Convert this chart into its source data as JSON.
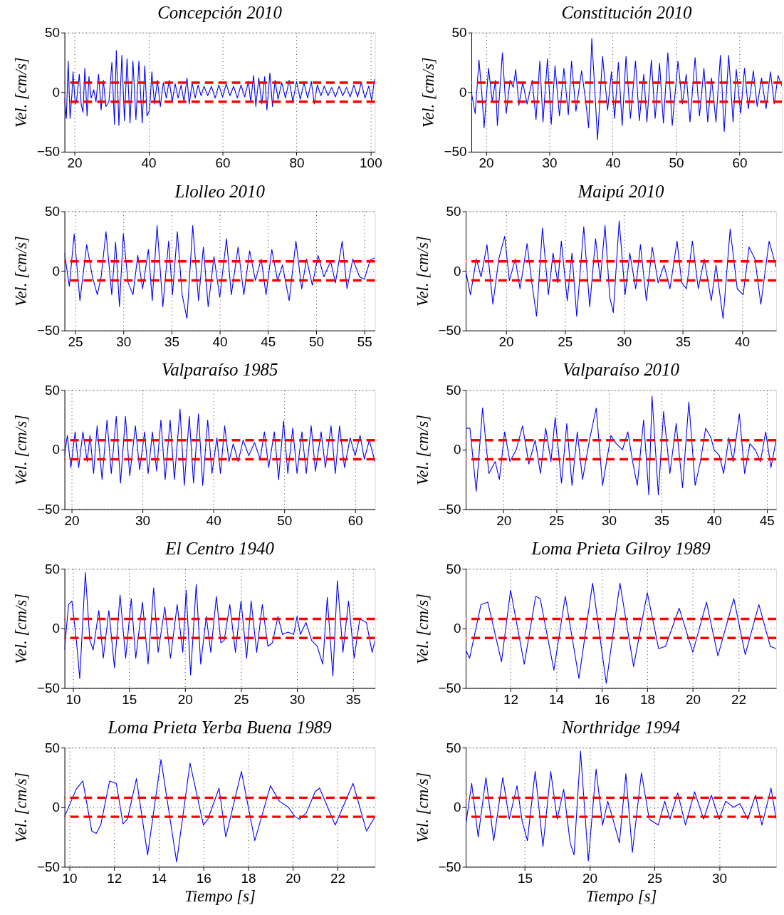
{
  "chart_data": [
    {
      "type": "line",
      "title": "Concepción 2010",
      "ylabel": "Vel. [cm/s]",
      "xlim": [
        17.3,
        101.2
      ],
      "xticks": [
        20,
        40,
        60,
        80,
        100
      ],
      "ylim": [
        -50,
        50
      ],
      "yticks": [
        -50,
        0,
        50
      ],
      "grid": true,
      "ref_lines": [
        {
          "axis": "y",
          "value": 8,
          "color": "#ff0000",
          "line_style": "dashed"
        },
        {
          "axis": "y",
          "value": -8,
          "color": "#ff0000",
          "line_style": "dashed"
        }
      ],
      "series": [
        {
          "color": "#0000ff",
          "x": [
            17.3,
            17.8,
            18.3,
            18.8,
            19.3,
            19.6,
            20.2,
            20.6,
            21.3,
            21.8,
            22.3,
            22.8,
            23.4,
            23.9,
            24.5,
            25.2,
            25.8,
            26.5,
            27.2,
            27.8,
            28.5,
            29.3,
            30.1,
            30.8,
            31.3,
            32.0,
            32.8,
            33.5,
            34.2,
            35.0,
            35.8,
            36.6,
            37.4,
            38.3,
            39.0,
            39.6,
            40.3,
            40.9,
            41.6,
            42.4,
            43.2,
            44.0,
            44.8,
            45.6,
            46.4,
            47.2,
            48.0,
            48.8,
            49.6,
            50.4,
            51.0,
            51.8,
            52.6,
            53.4,
            54.2,
            55.0,
            56.0,
            57.0,
            58.0,
            59.0,
            60.0,
            61.0,
            62.0,
            63.0,
            64.0,
            65.0,
            66.0,
            67.0,
            67.6,
            68.4,
            69.0,
            69.8,
            70.6,
            71.4,
            72.0,
            72.8,
            73.5,
            74.2,
            75.0,
            76.0,
            77.0,
            78.0,
            79.0,
            80.0,
            81.0,
            82.0,
            83.0,
            84.0,
            84.8,
            85.6,
            86.6,
            87.5,
            88.5,
            89.5,
            90.5,
            91.5,
            92.5,
            93.5,
            94.5,
            95.5,
            96.5,
            97.5,
            98.5,
            99.5,
            100.3,
            101.1
          ],
          "values": [
            -5,
            -22,
            26,
            -22,
            -2,
            17,
            -10,
            -6,
            15,
            -10,
            -17,
            20,
            -20,
            13,
            -5,
            2,
            -8,
            15,
            -15,
            10,
            -12,
            -8,
            25,
            -27,
            35,
            -28,
            31,
            -24,
            28,
            -26,
            26,
            -23,
            26,
            -26,
            22,
            -20,
            -15,
            17,
            -10,
            10,
            -12,
            8,
            -5,
            10,
            -8,
            7,
            -5,
            6,
            -8,
            12,
            -10,
            8,
            -5,
            6,
            -3,
            5,
            -3,
            5,
            -5,
            6,
            -4,
            7,
            -3,
            5,
            -5,
            6,
            -4,
            9,
            -8,
            14,
            -12,
            12,
            -10,
            13,
            -15,
            16,
            -12,
            10,
            -6,
            8,
            -5,
            10,
            -8,
            9,
            -6,
            8,
            -5,
            9,
            -10,
            6,
            -3,
            5,
            -3,
            4,
            -4,
            5,
            -3,
            4,
            -4,
            6,
            -4,
            8,
            -5,
            5,
            -7,
            11
          ]
        }
      ]
    },
    {
      "type": "line",
      "title": "Constitución 2010",
      "ylabel": "Vel. [cm/s]",
      "xlim": [
        17.7,
        66.7
      ],
      "xticks": [
        20,
        30,
        40,
        50,
        60
      ],
      "ylim": [
        -50,
        50
      ],
      "yticks": [
        -50,
        0,
        50
      ],
      "grid": true,
      "ref_lines": [
        {
          "axis": "y",
          "value": 8,
          "color": "#ff0000",
          "line_style": "dashed"
        },
        {
          "axis": "y",
          "value": -8,
          "color": "#ff0000",
          "line_style": "dashed"
        }
      ],
      "series": [
        {
          "color": "#0000ff",
          "x": [
            17.7,
            18.3,
            18.9,
            19.4,
            19.7,
            20.4,
            21.0,
            21.5,
            21.8,
            22.6,
            23.2,
            23.8,
            24.3,
            24.7,
            25.2,
            25.8,
            26.5,
            27.3,
            27.9,
            28.5,
            29.0,
            29.7,
            30.3,
            30.9,
            31.6,
            32.3,
            33.0,
            33.5,
            34.2,
            35.1,
            35.7,
            36.2,
            36.7,
            37.3,
            37.6,
            38.4,
            39.2,
            39.8,
            40.3,
            40.9,
            41.5,
            42.1,
            42.8,
            43.6,
            44.2,
            44.9,
            45.4,
            46.1,
            46.7,
            47.4,
            48.0,
            48.7,
            49.4,
            50.3,
            51.0,
            51.6,
            52.2,
            53.0,
            53.7,
            54.4,
            55.0,
            55.6,
            56.3,
            57.0,
            57.6,
            58.3,
            59.0,
            59.5,
            60.2,
            60.8,
            61.4,
            62.2,
            62.8,
            63.5,
            64.2,
            64.9,
            65.5,
            66.1,
            66.7
          ],
          "values": [
            0,
            -18,
            27,
            -5,
            -30,
            20,
            -8,
            10,
            -28,
            33,
            -18,
            10,
            4,
            19,
            -11,
            8,
            -10,
            10,
            -23,
            26,
            -25,
            28,
            -27,
            22,
            -20,
            20,
            -19,
            26,
            -16,
            18,
            -6,
            -30,
            45,
            -10,
            -40,
            30,
            -15,
            17,
            -22,
            25,
            -28,
            30,
            -22,
            26,
            -24,
            15,
            -25,
            27,
            -22,
            24,
            -26,
            33,
            -28,
            26,
            -10,
            15,
            -25,
            29,
            -20,
            20,
            -25,
            12,
            -25,
            31,
            -33,
            31,
            -25,
            19,
            -18,
            20,
            -14,
            18,
            -12,
            12,
            -14,
            17,
            -10,
            14,
            5
          ]
        }
      ]
    },
    {
      "type": "line",
      "title": "Llolleo 2010",
      "ylabel": "Vel. [cm/s]",
      "xlim": [
        23.9,
        56.1
      ],
      "xticks": [
        25,
        30,
        35,
        40,
        45,
        50,
        55
      ],
      "ylim": [
        -50,
        50
      ],
      "yticks": [
        -50,
        0,
        50
      ],
      "grid": true,
      "ref_lines": [
        {
          "axis": "y",
          "value": 8,
          "color": "#ff0000",
          "line_style": "dashed"
        },
        {
          "axis": "y",
          "value": -8,
          "color": "#ff0000",
          "line_style": "dashed"
        }
      ],
      "series": [
        {
          "color": "#0000ff",
          "x": [
            23.9,
            24.4,
            24.9,
            25.5,
            26.2,
            26.8,
            27.3,
            27.7,
            28.2,
            28.8,
            29.2,
            29.6,
            30.0,
            30.5,
            31.0,
            31.5,
            32.0,
            32.6,
            33.0,
            33.5,
            34.1,
            34.7,
            35.1,
            35.6,
            36.1,
            36.6,
            37.2,
            37.8,
            38.3,
            38.8,
            39.4,
            40.0,
            40.7,
            41.2,
            41.9,
            42.5,
            43.1,
            43.7,
            44.3,
            44.8,
            45.4,
            46.0,
            46.5,
            47.2,
            47.9,
            48.5,
            49.0,
            49.6,
            50.2,
            50.8,
            51.5,
            52.0,
            52.7,
            53.2,
            53.8,
            54.5,
            55.0,
            55.6,
            56.1
          ],
          "values": [
            15,
            -13,
            31,
            -25,
            22,
            -5,
            -20,
            -5,
            33,
            -20,
            24,
            -30,
            31,
            -10,
            -20,
            13,
            -15,
            18,
            -25,
            38,
            -30,
            25,
            -20,
            33,
            -20,
            -40,
            38,
            -25,
            20,
            -30,
            12,
            -22,
            27,
            -20,
            20,
            -20,
            17,
            -8,
            10,
            -20,
            18,
            -8,
            5,
            -25,
            25,
            -15,
            10,
            -12,
            13,
            -5,
            8,
            -10,
            25,
            -15,
            10,
            -5,
            -7,
            9,
            11
          ]
        }
      ]
    },
    {
      "type": "line",
      "title": "Maipú 2010",
      "ylabel": "Vel. [cm/s]",
      "xlim": [
        16.6,
        42.9
      ],
      "xticks": [
        20,
        25,
        30,
        35,
        40
      ],
      "ylim": [
        -50,
        50
      ],
      "yticks": [
        -50,
        0,
        50
      ],
      "grid": true,
      "ref_lines": [
        {
          "axis": "y",
          "value": 8,
          "color": "#ff0000",
          "line_style": "dashed"
        },
        {
          "axis": "y",
          "value": -8,
          "color": "#ff0000",
          "line_style": "dashed"
        }
      ],
      "series": [
        {
          "color": "#0000ff",
          "x": [
            16.6,
            17.0,
            17.5,
            17.9,
            18.4,
            18.9,
            19.4,
            19.9,
            20.3,
            20.8,
            21.2,
            21.8,
            22.2,
            22.6,
            23.1,
            23.6,
            24.0,
            24.4,
            24.7,
            25.2,
            25.6,
            26.0,
            26.6,
            27.1,
            27.6,
            28.0,
            28.4,
            28.8,
            29.1,
            29.6,
            30.1,
            30.5,
            31.0,
            31.4,
            31.9,
            32.4,
            32.9,
            33.4,
            33.9,
            34.5,
            34.9,
            35.3,
            35.8,
            36.3,
            36.8,
            37.4,
            37.8,
            38.4,
            39.0,
            39.6,
            40.1,
            40.6,
            41.1,
            41.6,
            42.3,
            42.9
          ],
          "values": [
            0,
            -20,
            10,
            -5,
            22,
            -28,
            10,
            29,
            -8,
            10,
            -15,
            23,
            -10,
            -38,
            36,
            -20,
            15,
            -10,
            25,
            -25,
            15,
            -38,
            37,
            -30,
            27,
            -8,
            38,
            -22,
            -35,
            42,
            -20,
            15,
            -15,
            22,
            -25,
            20,
            -10,
            5,
            -15,
            25,
            -10,
            -15,
            25,
            -15,
            10,
            -25,
            5,
            -40,
            35,
            -15,
            -20,
            20,
            10,
            -28,
            25,
            3
          ]
        }
      ]
    },
    {
      "type": "line",
      "title": "Valparaíso 1985",
      "ylabel": "Vel. [cm/s]",
      "xlim": [
        19.0,
        62.8
      ],
      "xticks": [
        20,
        30,
        40,
        50,
        60
      ],
      "ylim": [
        -50,
        50
      ],
      "yticks": [
        -50,
        0,
        50
      ],
      "grid": true,
      "ref_lines": [
        {
          "axis": "y",
          "value": 8,
          "color": "#ff0000",
          "line_style": "dashed"
        },
        {
          "axis": "y",
          "value": -8,
          "color": "#ff0000",
          "line_style": "dashed"
        }
      ],
      "series": [
        {
          "color": "#0000ff",
          "x": [
            19.0,
            19.4,
            19.9,
            20.5,
            21.0,
            21.6,
            22.2,
            22.6,
            23.1,
            23.6,
            24.3,
            25.0,
            25.6,
            26.3,
            26.9,
            27.6,
            28.2,
            29.0,
            29.6,
            30.3,
            30.8,
            31.4,
            32.0,
            32.6,
            33.2,
            33.9,
            34.5,
            35.3,
            35.9,
            36.6,
            37.2,
            37.9,
            38.5,
            39.2,
            39.8,
            40.5,
            41.0,
            41.6,
            42.2,
            42.8,
            43.5,
            44.2,
            45.0,
            45.8,
            46.6,
            47.2,
            47.8,
            48.6,
            49.2,
            49.9,
            50.5,
            51.2,
            51.8,
            52.5,
            53.1,
            53.8,
            54.4,
            55.2,
            55.8,
            56.6,
            57.2,
            57.8,
            58.5,
            59.3,
            60.0,
            60.7,
            61.3,
            62.0,
            62.8
          ],
          "values": [
            -5,
            12,
            -15,
            15,
            -15,
            15,
            -10,
            12,
            -20,
            20,
            -25,
            25,
            -20,
            28,
            -28,
            28,
            -22,
            20,
            -17,
            15,
            -20,
            15,
            -18,
            25,
            -25,
            25,
            -25,
            34,
            -30,
            28,
            -28,
            30,
            -30,
            25,
            -20,
            10,
            -20,
            20,
            -10,
            5,
            -10,
            8,
            -5,
            6,
            -8,
            15,
            -15,
            15,
            -25,
            24,
            -20,
            18,
            -20,
            15,
            -20,
            20,
            -18,
            15,
            -15,
            20,
            -20,
            20,
            -15,
            10,
            -5,
            12,
            -8,
            8,
            -10
          ]
        }
      ]
    },
    {
      "type": "line",
      "title": "Valparaíso 2010",
      "ylabel": "Vel. [cm/s]",
      "xlim": [
        16.4,
        45.9
      ],
      "xticks": [
        20,
        25,
        30,
        35,
        40,
        45
      ],
      "ylim": [
        -50,
        50
      ],
      "yticks": [
        -50,
        0,
        50
      ],
      "grid": true,
      "ref_lines": [
        {
          "axis": "y",
          "value": 8,
          "color": "#ff0000",
          "line_style": "dashed"
        },
        {
          "axis": "y",
          "value": -8,
          "color": "#ff0000",
          "line_style": "dashed"
        }
      ],
      "series": [
        {
          "color": "#0000ff",
          "x": [
            16.4,
            16.8,
            17.4,
            18.0,
            18.6,
            19.2,
            19.6,
            20.1,
            20.6,
            21.2,
            21.8,
            22.4,
            23.0,
            23.5,
            24.0,
            24.5,
            24.9,
            25.5,
            26.0,
            26.5,
            27.0,
            27.5,
            28.2,
            28.8,
            29.4,
            30.2,
            30.7,
            31.3,
            31.8,
            32.3,
            32.7,
            33.3,
            33.8,
            34.1,
            34.7,
            35.2,
            35.8,
            36.4,
            37.0,
            37.6,
            38.2,
            38.7,
            39.2,
            39.7,
            40.0,
            40.5,
            40.9,
            41.4,
            41.8,
            42.4,
            42.9,
            43.4,
            43.9,
            44.4,
            44.9,
            45.4,
            45.9
          ],
          "values": [
            18,
            18,
            -35,
            35,
            -20,
            -10,
            -25,
            15,
            -10,
            0,
            20,
            -12,
            8,
            -20,
            18,
            -10,
            27,
            -28,
            22,
            -30,
            15,
            -25,
            10,
            35,
            -30,
            12,
            5,
            0,
            15,
            -12,
            -30,
            25,
            -38,
            45,
            -38,
            32,
            -20,
            22,
            -32,
            40,
            -30,
            -10,
            18,
            10,
            0,
            -5,
            -20,
            10,
            -10,
            30,
            -20,
            5,
            0,
            -10,
            15,
            -15,
            8
          ]
        }
      ]
    },
    {
      "type": "line",
      "title": "El Centro 1940",
      "ylabel": "Vel. [cm/s]",
      "xlim": [
        9.24,
        36.96
      ],
      "xticks": [
        10,
        15,
        20,
        25,
        30,
        35
      ],
      "ylim": [
        -50,
        50
      ],
      "yticks": [
        -50,
        0,
        50
      ],
      "grid": true,
      "ref_lines": [
        {
          "axis": "y",
          "value": 8,
          "color": "#ff0000",
          "line_style": "dashed"
        },
        {
          "axis": "y",
          "value": -8,
          "color": "#ff0000",
          "line_style": "dashed"
        }
      ],
      "series": [
        {
          "color": "#0000ff",
          "x": [
            9.24,
            9.6,
            9.9,
            10.3,
            10.6,
            11.1,
            11.5,
            11.8,
            12.3,
            12.7,
            13.2,
            13.7,
            14.2,
            14.7,
            15.2,
            15.6,
            16.2,
            16.7,
            17.2,
            17.6,
            18.2,
            18.7,
            19.3,
            19.8,
            20.1,
            20.5,
            21.0,
            21.4,
            21.9,
            22.3,
            22.8,
            23.2,
            23.5,
            24.0,
            24.5,
            25.0,
            25.5,
            25.9,
            26.4,
            26.9,
            27.4,
            27.8,
            28.3,
            28.7,
            29.2,
            29.7,
            30.0,
            30.3,
            30.8,
            31.3,
            31.8,
            32.3,
            32.7,
            33.2,
            33.6,
            34.1,
            34.6,
            35.1,
            35.6,
            36.2,
            36.7,
            36.96
          ],
          "values": [
            -18,
            20,
            23,
            -10,
            -42,
            47,
            -10,
            -18,
            15,
            -25,
            15,
            -33,
            28,
            -25,
            25,
            -25,
            22,
            -30,
            34,
            -20,
            18,
            -25,
            20,
            -20,
            32,
            -39,
            37,
            -30,
            10,
            -20,
            27,
            -12,
            -10,
            20,
            -20,
            23,
            -25,
            23,
            -20,
            20,
            -15,
            -12,
            10,
            -5,
            -3,
            -5,
            10,
            -5,
            5,
            -10,
            -15,
            -30,
            26,
            -40,
            40,
            -20,
            23,
            -25,
            8,
            5,
            -20,
            -10
          ]
        }
      ]
    },
    {
      "type": "line",
      "title": "Loma Prieta Gilroy 1989",
      "ylabel": "Vel. [cm/s]",
      "xlim": [
        10.03,
        23.66
      ],
      "xticks": [
        12,
        14,
        16,
        18,
        20,
        22
      ],
      "ylim": [
        -50,
        50
      ],
      "yticks": [
        -50,
        0,
        50
      ],
      "grid": true,
      "ref_lines": [
        {
          "axis": "y",
          "value": 8,
          "color": "#ff0000",
          "line_style": "dashed"
        },
        {
          "axis": "y",
          "value": -8,
          "color": "#ff0000",
          "line_style": "dashed"
        }
      ],
      "series": [
        {
          "color": "#0000ff",
          "x": [
            10.03,
            10.2,
            10.7,
            11.0,
            11.6,
            12.0,
            12.6,
            13.1,
            13.3,
            13.9,
            14.4,
            15.0,
            15.6,
            16.2,
            16.8,
            17.4,
            18.0,
            18.5,
            18.8,
            19.4,
            20.0,
            20.6,
            21.1,
            21.8,
            22.3,
            22.9,
            23.4,
            23.66
          ],
          "values": [
            -18,
            -25,
            20,
            22,
            -28,
            32,
            -30,
            27,
            25,
            -35,
            27,
            -42,
            38,
            -46,
            38,
            -32,
            30,
            -17,
            -15,
            17,
            -20,
            22,
            -23,
            25,
            -22,
            20,
            -15,
            -17
          ]
        }
      ]
    },
    {
      "type": "line",
      "title": "Loma Prieta Yerba Buena 1989",
      "xlabel": "Tiempo [s]",
      "ylabel": "Vel. [cm/s]",
      "xlim": [
        9.78,
        23.68
      ],
      "xticks": [
        10,
        12,
        14,
        16,
        18,
        20,
        22
      ],
      "ylim": [
        -50,
        50
      ],
      "yticks": [
        -50,
        0,
        50
      ],
      "grid": true,
      "ref_lines": [
        {
          "axis": "y",
          "value": 8,
          "color": "#ff0000",
          "line_style": "dashed"
        },
        {
          "axis": "y",
          "value": -8,
          "color": "#ff0000",
          "line_style": "dashed"
        }
      ],
      "series": [
        {
          "color": "#0000ff",
          "x": [
            9.78,
            10.3,
            10.6,
            11.0,
            11.2,
            11.4,
            11.8,
            12.1,
            12.4,
            12.6,
            13.0,
            13.5,
            14.1,
            14.8,
            15.4,
            16.0,
            16.2,
            16.7,
            17.0,
            17.7,
            18.3,
            19.0,
            19.4,
            19.8,
            20.1,
            20.3,
            20.6,
            21.0,
            21.2,
            21.9,
            22.7,
            23.3,
            23.68
          ],
          "values": [
            -8,
            15,
            22,
            -20,
            -22,
            -15,
            22,
            20,
            -14,
            -10,
            24,
            -40,
            40,
            -46,
            37,
            -15,
            -10,
            16,
            -25,
            30,
            -28,
            18,
            5,
            0,
            -8,
            -10,
            -5,
            13,
            16,
            -15,
            20,
            -20,
            -8
          ]
        }
      ]
    },
    {
      "type": "line",
      "title": "Northridge 1994",
      "xlabel": "Tiempo [s]",
      "ylabel": "Vel. [cm/s]",
      "xlim": [
        10.44,
        34.4
      ],
      "xticks": [
        15,
        20,
        25,
        30
      ],
      "ylim": [
        -50,
        50
      ],
      "yticks": [
        -50,
        0,
        50
      ],
      "grid": true,
      "ref_lines": [
        {
          "axis": "y",
          "value": 8,
          "color": "#ff0000",
          "line_style": "dashed"
        },
        {
          "axis": "y",
          "value": -8,
          "color": "#ff0000",
          "line_style": "dashed"
        }
      ],
      "series": [
        {
          "color": "#0000ff",
          "x": [
            10.44,
            10.9,
            11.4,
            12.0,
            12.6,
            13.3,
            13.8,
            14.4,
            14.8,
            15.2,
            15.8,
            16.4,
            17.0,
            17.5,
            18.0,
            18.5,
            18.8,
            19.3,
            19.9,
            20.5,
            21.0,
            21.4,
            21.8,
            22.3,
            22.8,
            23.3,
            24.0,
            24.6,
            25.3,
            25.8,
            26.2,
            26.8,
            27.4,
            28.1,
            28.8,
            29.4,
            30.0,
            30.5,
            31.1,
            31.6,
            32.2,
            32.8,
            33.3,
            34.0,
            34.4
          ],
          "values": [
            -15,
            20,
            -25,
            25,
            -28,
            25,
            -10,
            18,
            -12,
            -28,
            30,
            -33,
            30,
            -10,
            15,
            -30,
            -40,
            47,
            -45,
            32,
            -15,
            5,
            -10,
            -30,
            28,
            -38,
            29,
            -10,
            -15,
            5,
            -10,
            12,
            -15,
            13,
            -10,
            10,
            -10,
            5,
            0,
            3,
            -10,
            10,
            -15,
            16,
            -10
          ]
        }
      ]
    }
  ]
}
